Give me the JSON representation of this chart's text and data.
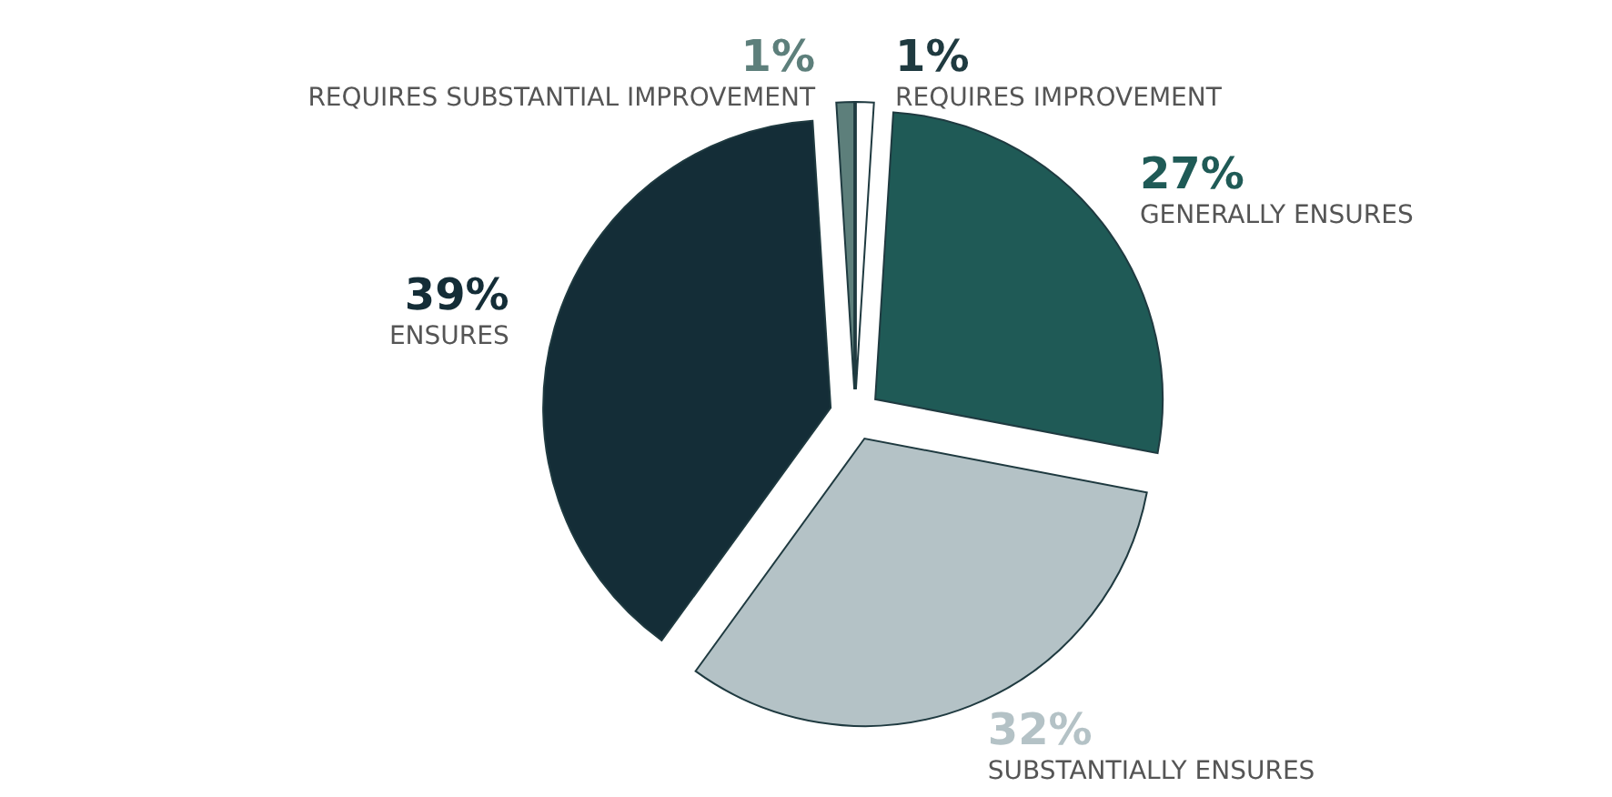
{
  "chart_data": {
    "type": "pie",
    "categories": [
      "REQUIRES IMPROVEMENT",
      "GENERALLY ENSURES",
      "SUBSTANTIALLY ENSURES",
      "ENSURES",
      "REQUIRES SUBSTANTIAL IMPROVEMENT"
    ],
    "values": [
      1,
      27,
      32,
      39,
      1
    ],
    "value_labels": [
      "1%",
      "27%",
      "32%",
      "39%",
      "1%"
    ],
    "colors": [
      "#ffffff",
      "#1f5a56",
      "#b4c2c6",
      "#142d37",
      "#5d7f7b"
    ]
  }
}
